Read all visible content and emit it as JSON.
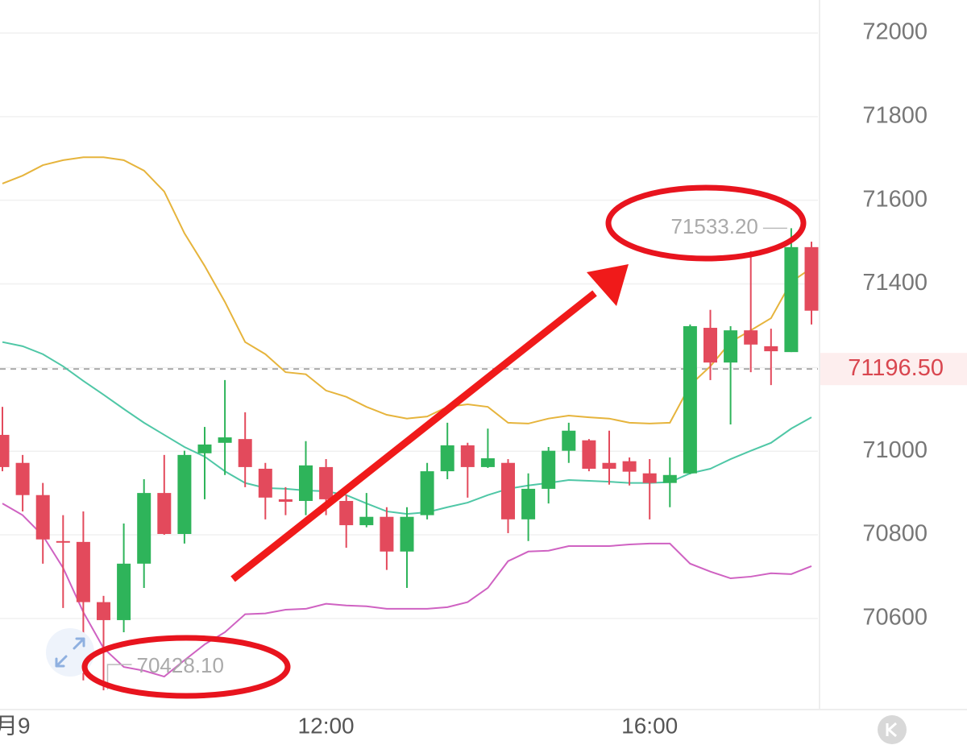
{
  "chart_data": {
    "type": "candlestick",
    "categories": [
      "月9",
      null,
      null,
      null,
      null,
      null,
      null,
      null,
      null,
      null,
      null,
      null,
      null,
      null,
      null,
      null,
      "12:00",
      null,
      null,
      null,
      null,
      null,
      null,
      null,
      null,
      null,
      null,
      null,
      null,
      null,
      null,
      null,
      "16:00",
      null,
      null,
      null,
      null,
      null,
      null,
      null,
      null
    ],
    "candles": {
      "open": [
        71039,
        70972,
        70895,
        70785,
        70783,
        70639,
        70596,
        70731,
        70900,
        70802,
        70995,
        71020,
        71029,
        70958,
        70885,
        70881,
        70962,
        70881,
        70823,
        70843,
        70760,
        70847,
        70952,
        71014,
        70962,
        70972,
        70837,
        70910,
        71001,
        71026,
        70972,
        70976,
        70947,
        70924,
        70947,
        71295,
        71212,
        71289,
        71251,
        71237,
        71488
      ],
      "high": [
        71106,
        70991,
        70924,
        70847,
        70856,
        70654,
        70827,
        70933,
        70991,
        71001,
        71058,
        71170,
        71093,
        70972,
        70914,
        71024,
        70981,
        70895,
        70900,
        70866,
        70866,
        70972,
        71068,
        71020,
        71054,
        70981,
        70947,
        71010,
        71068,
        71029,
        71049,
        70985,
        70981,
        70985,
        71303,
        71338,
        71299,
        71478,
        71293,
        71533.2,
        71501
      ],
      "low": [
        70952,
        70856,
        70731,
        70625,
        70452,
        70428.1,
        70567,
        70673,
        70800,
        70779,
        70885,
        70943,
        70914,
        70837,
        70847,
        70847,
        70847,
        70769,
        70818,
        70716,
        70673,
        70837,
        70933,
        70889,
        70960,
        70804,
        70785,
        70875,
        70972,
        70952,
        70920,
        70918,
        70837,
        70866,
        70945,
        71170,
        71064,
        71189,
        71158,
        71237,
        71303
      ],
      "close": [
        70962,
        70895,
        70789,
        70783,
        70639,
        70596,
        70731,
        70900,
        70802,
        70991,
        71016,
        71033,
        70962,
        70889,
        70879,
        70966,
        70885,
        70823,
        70843,
        70760,
        70843,
        70952,
        71014,
        70962,
        70983,
        70837,
        70910,
        71001,
        71049,
        70958,
        70958,
        70951,
        70924,
        70943,
        71299,
        71212,
        71289,
        71255,
        71239,
        71488,
        71336
      ],
      "up_color": "#2eb45a",
      "down_color": "#e34a5c"
    },
    "series": [
      {
        "type": "line",
        "color": "#e6b43c",
        "values": [
          71640,
          71659,
          71684,
          71696,
          71703,
          71703,
          71696,
          71671,
          71621,
          71521,
          71443,
          71357,
          71261,
          71232,
          71189,
          71184,
          71145,
          71130,
          71106,
          71087,
          71078,
          71083,
          71106,
          71112,
          71106,
          71068,
          71066,
          71078,
          71085,
          71081,
          71078,
          71068,
          71066,
          71068,
          71158,
          71203,
          71261,
          71289,
          71318,
          71405,
          71438
        ]
      },
      {
        "type": "line",
        "color": "#4fc7a6",
        "values": [
          71261,
          71251,
          71232,
          71203,
          71168,
          71135,
          71101,
          71068,
          71039,
          71010,
          70987,
          70952,
          70924,
          70912,
          70910,
          70906,
          70904,
          70895,
          70875,
          70856,
          70850,
          70854,
          70866,
          70877,
          70895,
          70910,
          70918,
          70924,
          70931,
          70929,
          70927,
          70924,
          70924,
          70926,
          70947,
          70958,
          70981,
          71001,
          71020,
          71054,
          71081
        ]
      },
      {
        "type": "line",
        "color": "#cf62c2",
        "values": [
          70875,
          70847,
          70798,
          70721,
          70615,
          70529,
          70484,
          70475,
          70461,
          70500,
          70538,
          70567,
          70610,
          70612,
          70621,
          70623,
          70635,
          70631,
          70629,
          70623,
          70623,
          70623,
          70627,
          70639,
          70673,
          70737,
          70760,
          70762,
          70773,
          70773,
          70773,
          70777,
          70779,
          70779,
          70731,
          70712,
          70696,
          70700,
          70708,
          70706,
          70725
        ]
      }
    ],
    "ylim": [
      70384,
      72079
    ],
    "yticks": [
      70600,
      70800,
      71000,
      71200,
      71400,
      71600,
      71800,
      72000
    ],
    "grid": true,
    "current_price": {
      "value": 71196.5,
      "label": "71196.50"
    },
    "annotations": [
      {
        "value": 71533.2,
        "label": "71533.20"
      },
      {
        "value": 70428.1,
        "label": "70428.10"
      }
    ]
  }
}
